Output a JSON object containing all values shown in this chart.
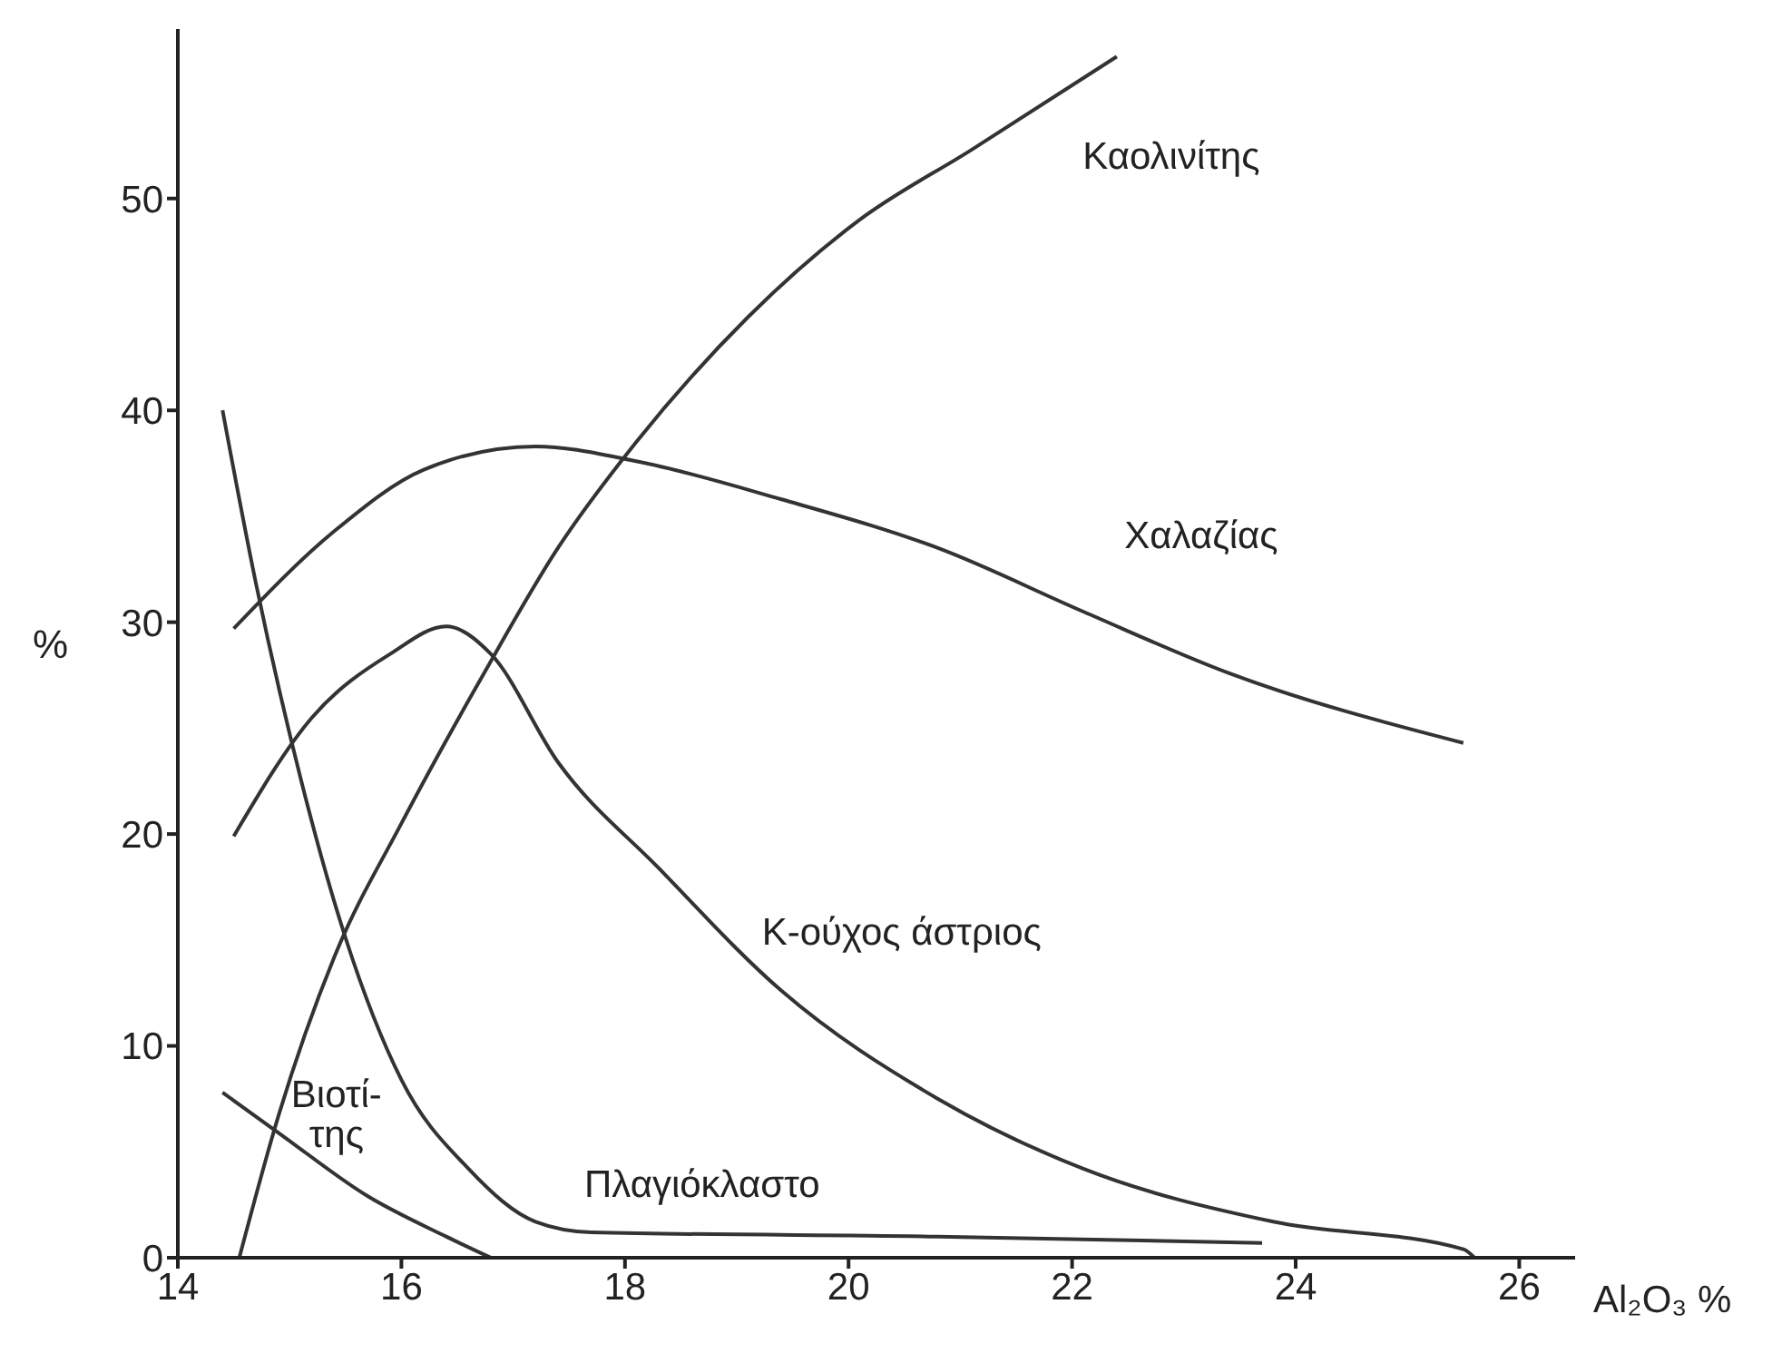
{
  "chart_data": {
    "type": "line",
    "xlabel": "Al₂O₃ %",
    "ylabel": "%",
    "xlim": [
      14,
      26.5
    ],
    "ylim": [
      0,
      58
    ],
    "xticks": [
      14,
      16,
      18,
      20,
      22,
      24,
      26
    ],
    "yticks": [
      0,
      10,
      20,
      30,
      40,
      50
    ],
    "grid": false,
    "legend": false,
    "marker": "none",
    "line_style": "solid",
    "series": [
      {
        "name": "Καολινίτης",
        "color": "#333333",
        "x": [
          14.55,
          14.9,
          15.4,
          16.0,
          16.74,
          17.4,
          18.1,
          19.1,
          20.1,
          21.1,
          22.4
        ],
        "values": [
          0,
          6.7,
          14.2,
          20.5,
          27.6,
          33.5,
          38.5,
          44.4,
          49,
          52.3,
          56.7
        ]
      },
      {
        "name": "Χαλαζίας",
        "color": "#333333",
        "x": [
          14.5,
          15.4,
          16.2,
          17.2,
          18.1,
          19.4,
          20.8,
          22.1,
          23.4,
          25.5
        ],
        "values": [
          29.7,
          34.3,
          37.2,
          38.3,
          37.6,
          35.8,
          33.5,
          30.5,
          27.6,
          24.3
        ]
      },
      {
        "name": "Κ-ούχος άστριος",
        "color": "#333333",
        "x": [
          14.5,
          15.2,
          15.9,
          16.4,
          16.8,
          17.4,
          18.3,
          19.4,
          20.8,
          22.1,
          23.8,
          25.5,
          25.6
        ],
        "values": [
          19.9,
          25.5,
          28.5,
          29.8,
          28.5,
          23.4,
          18.4,
          12.6,
          7.5,
          4.2,
          1.7,
          0.4,
          0
        ]
      },
      {
        "name": "Πλαγιόκλαστο",
        "color": "#333333",
        "x": [
          14.4,
          14.7,
          15.1,
          15.5,
          16,
          16.6,
          17.2,
          17.7,
          20.8,
          23.7
        ],
        "values": [
          40,
          31.8,
          22.6,
          15.1,
          8.4,
          4.2,
          1.7,
          1.2,
          1.0,
          0.7
        ]
      },
      {
        "name": "Βιοτί-\nτης",
        "color": "#333333",
        "x": [
          14.4,
          14.9,
          15.7,
          16.4,
          16.8
        ],
        "values": [
          7.8,
          5.9,
          2.9,
          1.0,
          0
        ]
      }
    ]
  }
}
